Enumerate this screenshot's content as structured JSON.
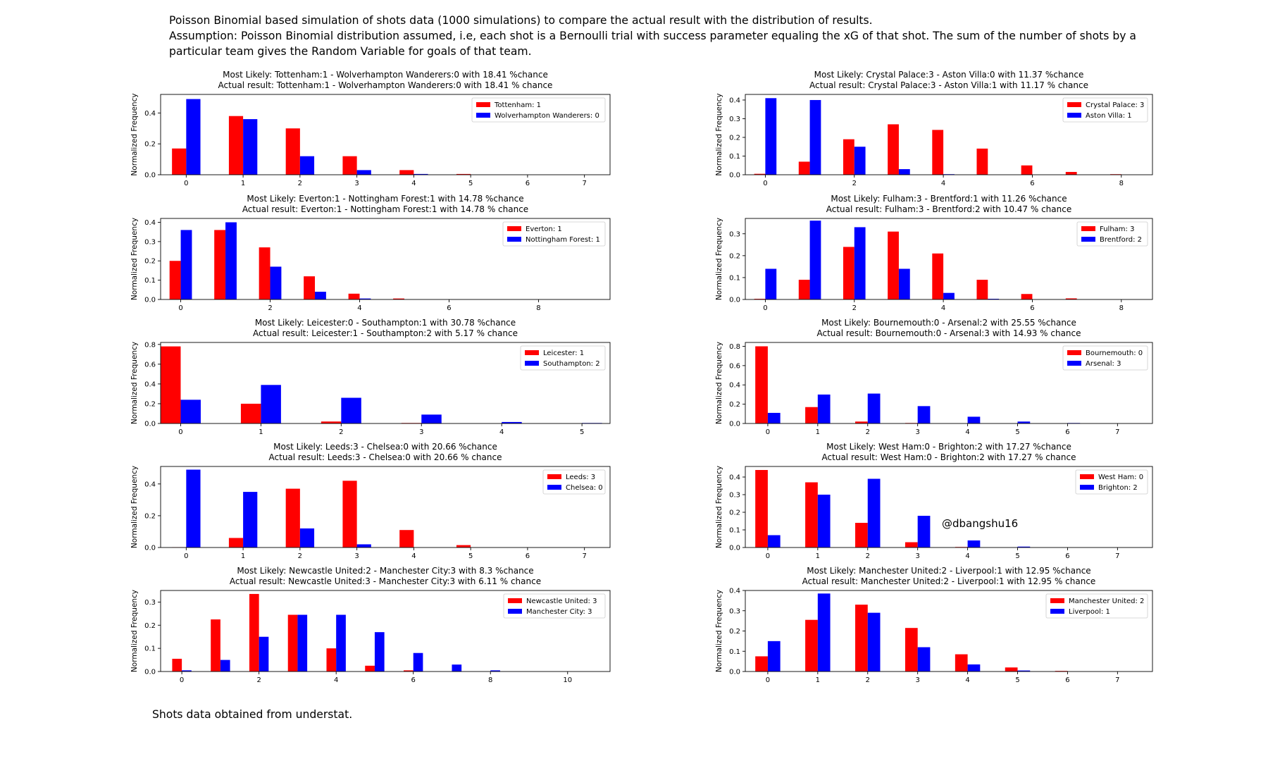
{
  "header": {
    "line1": "Poisson Binomial based simulation of shots data (1000 simulations) to compare the actual result with the distribution of results.",
    "line2": "Assumption: Poisson Binomial distribution assumed, i.e, each shot is a Bernoulli trial with success parameter equaling the xG of that shot. The sum of the number of shots by a particular team gives the Random Variable for goals of that team."
  },
  "footer": "Shots data obtained from understat.",
  "watermark": "@dbangshu16",
  "colors": {
    "home": "#ff0000",
    "away": "#0000ff"
  },
  "chart_data": [
    {
      "type": "bar",
      "title": [
        "Most Likely: Tottenham:1 - Wolverhampton Wanderers:0 with 18.41 %chance",
        "Actual result: Tottenham:1 - Wolverhampton Wanderers:0 with 18.41 % chance"
      ],
      "ylabel": "Normalized Frequency",
      "x": [
        0,
        1,
        2,
        3,
        4,
        5,
        6,
        7
      ],
      "xticks": [
        0,
        1,
        2,
        3,
        4,
        5,
        6,
        7
      ],
      "yticks": [
        0.0,
        0.2,
        0.4
      ],
      "xlim": [
        -0.45,
        7.45
      ],
      "ylim": [
        0,
        0.52
      ],
      "legend_position": "top-right",
      "series": [
        {
          "name": "Tottenham: 1",
          "values": [
            0.17,
            0.38,
            0.3,
            0.12,
            0.03,
            0.005,
            0,
            0
          ]
        },
        {
          "name": "Wolverhampton Wanderers: 0",
          "values": [
            0.49,
            0.36,
            0.12,
            0.03,
            0.005,
            0,
            0,
            0
          ]
        }
      ]
    },
    {
      "type": "bar",
      "title": [
        "Most Likely: Crystal Palace:3 - Aston Villa:0 with 11.37 %chance",
        "Actual result: Crystal Palace:3 - Aston Villa:1 with 11.17 % chance"
      ],
      "ylabel": "Normalized Frequency",
      "x": [
        0,
        1,
        2,
        3,
        4,
        5,
        6,
        7,
        8
      ],
      "xticks": [
        0,
        2,
        4,
        6,
        8
      ],
      "yticks": [
        0.0,
        0.1,
        0.2,
        0.3,
        0.4
      ],
      "xlim": [
        -0.45,
        8.7
      ],
      "ylim": [
        0,
        0.43
      ],
      "legend_position": "top-right",
      "series": [
        {
          "name": "Crystal Palace: 3",
          "values": [
            0.005,
            0.07,
            0.19,
            0.27,
            0.24,
            0.14,
            0.05,
            0.015,
            0.003
          ]
        },
        {
          "name": "Aston Villa: 1",
          "values": [
            0.41,
            0.4,
            0.15,
            0.03,
            0.003,
            0,
            0,
            0,
            0
          ]
        }
      ]
    },
    {
      "type": "bar",
      "title": [
        "Most Likely: Everton:1 - Nottingham Forest:1 with 14.78 %chance",
        "Actual result: Everton:1 - Nottingham Forest:1 with 14.78 % chance"
      ],
      "ylabel": "Normalized Frequency",
      "x": [
        0,
        1,
        2,
        3,
        4,
        5,
        6,
        7,
        8
      ],
      "xticks": [
        0,
        2,
        4,
        6,
        8
      ],
      "yticks": [
        0.0,
        0.1,
        0.2,
        0.3,
        0.4
      ],
      "xlim": [
        -0.45,
        9.6
      ],
      "ylim": [
        0,
        0.42
      ],
      "legend_position": "top-right",
      "series": [
        {
          "name": "Everton: 1",
          "values": [
            0.2,
            0.36,
            0.27,
            0.12,
            0.03,
            0.005,
            0,
            0,
            0
          ]
        },
        {
          "name": "Nottingham Forest: 1",
          "values": [
            0.36,
            0.4,
            0.17,
            0.04,
            0.005,
            0,
            0,
            0,
            0
          ]
        }
      ]
    },
    {
      "type": "bar",
      "title": [
        "Most Likely: Fulham:3 - Brentford:1 with 11.26 %chance",
        "Actual result: Fulham:3 - Brentford:2 with 10.47 % chance"
      ],
      "ylabel": "Normalized Frequency",
      "x": [
        0,
        1,
        2,
        3,
        4,
        5,
        6,
        7,
        8
      ],
      "xticks": [
        0,
        2,
        4,
        6,
        8
      ],
      "yticks": [
        0.0,
        0.1,
        0.2,
        0.3
      ],
      "xlim": [
        -0.45,
        8.7
      ],
      "ylim": [
        0,
        0.37
      ],
      "legend_position": "top-right",
      "series": [
        {
          "name": "Fulham: 3",
          "values": [
            0.003,
            0.09,
            0.24,
            0.31,
            0.21,
            0.09,
            0.025,
            0.005,
            0
          ]
        },
        {
          "name": "Brentford: 2",
          "values": [
            0.14,
            0.36,
            0.33,
            0.14,
            0.03,
            0.003,
            0,
            0,
            0
          ]
        }
      ]
    },
    {
      "type": "bar",
      "title": [
        "Most Likely: Leicester:0 - Southampton:1 with 30.78 %chance",
        "Actual result: Leicester:1 - Southampton:2 with 5.17 % chance"
      ],
      "ylabel": "Normalized Frequency",
      "x": [
        0,
        1,
        2,
        3,
        4,
        5
      ],
      "xticks": [
        0,
        1,
        2,
        3,
        4,
        5
      ],
      "yticks": [
        0.0,
        0.2,
        0.4,
        0.6,
        0.8
      ],
      "xlim": [
        -0.25,
        5.35
      ],
      "ylim": [
        0,
        0.82
      ],
      "legend_position": "top-right",
      "series": [
        {
          "name": "Leicester: 1",
          "values": [
            0.78,
            0.2,
            0.02,
            0.005,
            0,
            0
          ]
        },
        {
          "name": "Southampton: 2",
          "values": [
            0.24,
            0.39,
            0.26,
            0.09,
            0.015,
            0.005
          ]
        }
      ]
    },
    {
      "type": "bar",
      "title": [
        "Most Likely: Bournemouth:0 - Arsenal:2 with 25.55 %chance",
        "Actual result: Bournemouth:0 - Arsenal:3 with 14.93 % chance"
      ],
      "ylabel": "Normalized Frequency",
      "x": [
        0,
        1,
        2,
        3,
        4,
        5,
        6,
        7
      ],
      "xticks": [
        0,
        1,
        2,
        3,
        4,
        5,
        6,
        7
      ],
      "yticks": [
        0.0,
        0.2,
        0.4,
        0.6,
        0.8
      ],
      "xlim": [
        -0.45,
        7.7
      ],
      "ylim": [
        0,
        0.84
      ],
      "legend_position": "top-right",
      "series": [
        {
          "name": "Bournemouth: 0",
          "values": [
            0.8,
            0.17,
            0.02,
            0.005,
            0,
            0,
            0,
            0
          ]
        },
        {
          "name": "Arsenal: 3",
          "values": [
            0.11,
            0.3,
            0.31,
            0.18,
            0.07,
            0.02,
            0.005,
            0
          ]
        }
      ]
    },
    {
      "type": "bar",
      "title": [
        "Most Likely: Leeds:3 - Chelsea:0 with 20.66 %chance",
        "Actual result: Leeds:3 - Chelsea:0 with 20.66 % chance"
      ],
      "ylabel": "Normalized Frequency",
      "x": [
        0,
        1,
        2,
        3,
        4,
        5,
        6,
        7
      ],
      "xticks": [
        0,
        1,
        2,
        3,
        4,
        5,
        6,
        7
      ],
      "yticks": [
        0.0,
        0.2,
        0.4
      ],
      "xlim": [
        -0.45,
        7.45
      ],
      "ylim": [
        0,
        0.51
      ],
      "legend_position": "top-right",
      "series": [
        {
          "name": "Leeds: 3",
          "values": [
            0.002,
            0.06,
            0.37,
            0.42,
            0.11,
            0.015,
            0,
            0
          ]
        },
        {
          "name": "Chelsea: 0",
          "values": [
            0.49,
            0.35,
            0.12,
            0.02,
            0,
            0,
            0,
            0
          ]
        }
      ]
    },
    {
      "type": "bar",
      "title": [
        "Most Likely: West Ham:0 - Brighton:2 with 17.27 %chance",
        "Actual result: West Ham:0 - Brighton:2 with 17.27 % chance"
      ],
      "ylabel": "Normalized Frequency",
      "x": [
        0,
        1,
        2,
        3,
        4,
        5,
        6,
        7
      ],
      "xticks": [
        0,
        1,
        2,
        3,
        4,
        5,
        6,
        7
      ],
      "yticks": [
        0.0,
        0.1,
        0.2,
        0.3,
        0.4
      ],
      "xlim": [
        -0.45,
        7.7
      ],
      "ylim": [
        0,
        0.46
      ],
      "legend_position": "top-right",
      "series": [
        {
          "name": "West Ham: 0",
          "values": [
            0.44,
            0.37,
            0.14,
            0.03,
            0.003,
            0,
            0,
            0
          ]
        },
        {
          "name": "Brighton: 2",
          "values": [
            0.07,
            0.3,
            0.39,
            0.18,
            0.04,
            0.005,
            0,
            0
          ]
        }
      ]
    },
    {
      "type": "bar",
      "title": [
        "Most Likely: Newcastle United:2 - Manchester City:3 with 8.3 %chance",
        "Actual result: Newcastle United:3 - Manchester City:3 with 6.11 % chance"
      ],
      "ylabel": "Normalized Frequency",
      "x": [
        0,
        1,
        2,
        3,
        4,
        5,
        6,
        7,
        8,
        9,
        10
      ],
      "xticks": [
        0,
        2,
        4,
        6,
        8,
        10
      ],
      "yticks": [
        0.0,
        0.1,
        0.2,
        0.3
      ],
      "xlim": [
        -0.55,
        11.1
      ],
      "ylim": [
        0,
        0.35
      ],
      "legend_position": "top-right",
      "series": [
        {
          "name": "Newcastle United: 3",
          "values": [
            0.055,
            0.225,
            0.335,
            0.245,
            0.1,
            0.025,
            0.005,
            0,
            0,
            0,
            0
          ]
        },
        {
          "name": "Manchester City: 3",
          "values": [
            0.005,
            0.05,
            0.15,
            0.245,
            0.245,
            0.17,
            0.08,
            0.03,
            0.005,
            0,
            0
          ]
        }
      ]
    },
    {
      "type": "bar",
      "title": [
        "Most Likely: Manchester United:2 - Liverpool:1 with 12.95 %chance",
        "Actual result: Manchester United:2 - Liverpool:1 with 12.95 % chance"
      ],
      "ylabel": "Normalized Frequency",
      "x": [
        0,
        1,
        2,
        3,
        4,
        5,
        6,
        7
      ],
      "xticks": [
        0,
        1,
        2,
        3,
        4,
        5,
        6,
        7
      ],
      "yticks": [
        0.0,
        0.1,
        0.2,
        0.3,
        0.4
      ],
      "xlim": [
        -0.45,
        7.7
      ],
      "ylim": [
        0,
        0.4
      ],
      "legend_position": "top-right",
      "series": [
        {
          "name": "Manchester United: 2",
          "values": [
            0.075,
            0.255,
            0.33,
            0.215,
            0.085,
            0.02,
            0.003,
            0
          ]
        },
        {
          "name": "Liverpool: 1",
          "values": [
            0.15,
            0.385,
            0.29,
            0.12,
            0.035,
            0.005,
            0,
            0
          ]
        }
      ]
    }
  ]
}
